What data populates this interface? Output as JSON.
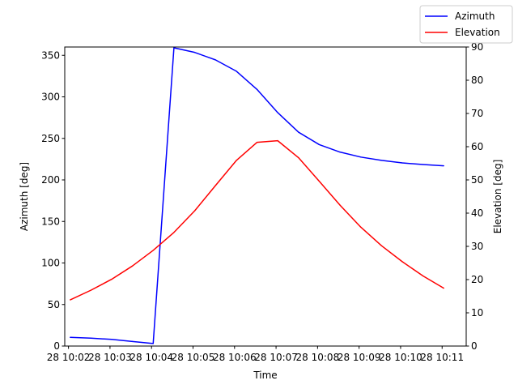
{
  "chart_data": {
    "type": "line",
    "xlabel": "Time",
    "ylabel_left": "Azimuth [deg]",
    "ylabel_right": "Elevation [deg]",
    "x_tick_labels": [
      "28 10:02",
      "28 10:03",
      "28 10:04",
      "28 10:05",
      "28 10:06",
      "28 10:07",
      "28 10:08",
      "28 10:09",
      "28 10:10",
      "28 10:11"
    ],
    "xlim": [
      -0.09,
      9.58
    ],
    "ylim_left": [
      0,
      360
    ],
    "yticks_left": [
      "0",
      "50",
      "100",
      "150",
      "200",
      "250",
      "300",
      "350"
    ],
    "ylim_right": [
      0,
      90
    ],
    "yticks_right": [
      "0",
      "10",
      "20",
      "30",
      "40",
      "50",
      "60",
      "70",
      "80",
      "90"
    ],
    "grid": false,
    "legend": {
      "position": "top-right",
      "entries": [
        "Azimuth",
        "Elevation"
      ]
    },
    "x": [
      0.04,
      0.54,
      1.04,
      1.54,
      2.04,
      2.54,
      3.04,
      3.54,
      4.04,
      4.54,
      5.04,
      5.54,
      6.04,
      6.54,
      7.04,
      7.54,
      8.04,
      8.54,
      9.04
    ],
    "series": [
      {
        "name": "Azimuth",
        "axis": "left",
        "color": "#0000ff",
        "values": [
          10.5,
          9.5,
          8.0,
          5.5,
          3.0,
          359.0,
          353.5,
          344.5,
          331.0,
          309.0,
          281.0,
          257.5,
          242.5,
          233.5,
          227.5,
          223.5,
          220.5,
          218.5,
          217.0
        ]
      },
      {
        "name": "Elevation",
        "axis": "right",
        "color": "#ff0000",
        "values": [
          13.9,
          16.8,
          20.1,
          24.1,
          28.8,
          34.2,
          40.7,
          48.3,
          55.8,
          61.3,
          61.8,
          56.7,
          49.6,
          42.4,
          35.8,
          30.2,
          25.4,
          21.1,
          17.4
        ]
      }
    ]
  }
}
